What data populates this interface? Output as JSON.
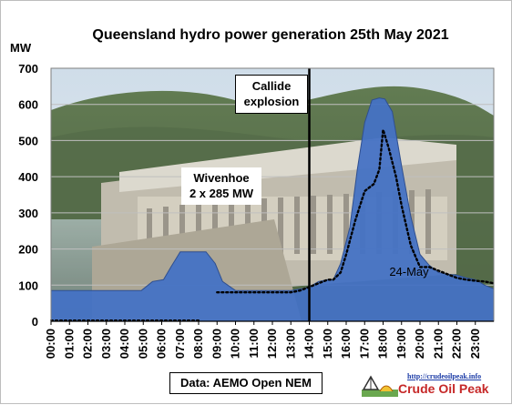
{
  "chart_data": {
    "type": "area",
    "title": "Queensland hydro power generation 25th May 2021",
    "ylabel": "MW",
    "xlabel": "",
    "ylim": [
      0,
      700
    ],
    "yticks": [
      0,
      100,
      200,
      300,
      400,
      500,
      600,
      700
    ],
    "grid": true,
    "categories": [
      "00:00",
      "01:00",
      "02:00",
      "03:00",
      "04:00",
      "05:00",
      "06:00",
      "07:00",
      "08:00",
      "09:00",
      "10:00",
      "11:00",
      "12:00",
      "13:00",
      "14:00",
      "15:00",
      "16:00",
      "17:00",
      "18:00",
      "19:00",
      "20:00",
      "21:00",
      "22:00",
      "23:00"
    ],
    "series": [
      {
        "name": "",
        "style": "filled-area",
        "color": "#4472c4",
        "x": [
          0,
          1,
          2,
          3,
          4,
          4.9,
          5.5,
          6.1,
          6.5,
          6.8,
          7.0,
          7.5,
          7.9,
          8.4,
          8.9,
          9.3,
          10,
          11,
          12,
          13,
          13.6,
          14,
          14.5,
          15,
          15.3,
          15.7,
          16.2,
          16.6,
          17.0,
          17.4,
          17.8,
          18.1,
          18.5,
          19,
          19.5,
          20,
          20.5,
          21,
          21.5,
          22,
          22.5,
          23,
          23.5,
          24
        ],
        "values": [
          85,
          85,
          85,
          85,
          85,
          85,
          110,
          115,
          150,
          175,
          192,
          192,
          192,
          192,
          160,
          110,
          85,
          85,
          85,
          85,
          90,
          95,
          110,
          115,
          115,
          160,
          260,
          420,
          550,
          612,
          618,
          615,
          580,
          430,
          290,
          185,
          155,
          135,
          130,
          128,
          120,
          115,
          100,
          90
        ]
      },
      {
        "name": "24-May",
        "style": "dotted",
        "color": "#000000",
        "x": [
          9,
          10,
          11,
          12,
          13,
          13.5,
          14,
          14.5,
          15,
          15.3,
          15.7,
          16,
          16.5,
          17,
          17.5,
          17.8,
          18,
          18.3,
          18.7,
          19,
          19.5,
          20,
          20.5,
          21,
          21.5,
          22,
          22.5,
          23,
          23.5,
          24
        ],
        "values": [
          80,
          80,
          80,
          80,
          80,
          85,
          95,
          105,
          115,
          115,
          135,
          185,
          280,
          360,
          380,
          420,
          530,
          480,
          400,
          320,
          210,
          150,
          150,
          140,
          130,
          120,
          115,
          112,
          110,
          105
        ]
      },
      {
        "name": "",
        "style": "dotted-early",
        "color": "#000000",
        "x": [
          0,
          1,
          2,
          3,
          4,
          5,
          6,
          7,
          8
        ],
        "values": [
          0,
          0,
          0,
          0,
          0,
          0,
          0,
          0,
          0
        ]
      }
    ],
    "annotations": [
      {
        "text": "Callide explosion",
        "lines": [
          "Callide",
          "explosion"
        ],
        "x": 14
      },
      {
        "text": "Wivenhoe 2 x 285 MW",
        "lines": [
          "Wivenhoe",
          "2 x 285 MW"
        ]
      },
      {
        "text": "24-May",
        "x": 20
      }
    ],
    "marker_line_x": 14,
    "source": "Data: AEMO Open NEM"
  },
  "logo": {
    "url_text": "http://crudeoilpeak.info",
    "name": "Crude Oil Peak"
  },
  "colors": {
    "area": "#4472c4",
    "grid": "#bfbfbf",
    "marker": "#000000"
  }
}
